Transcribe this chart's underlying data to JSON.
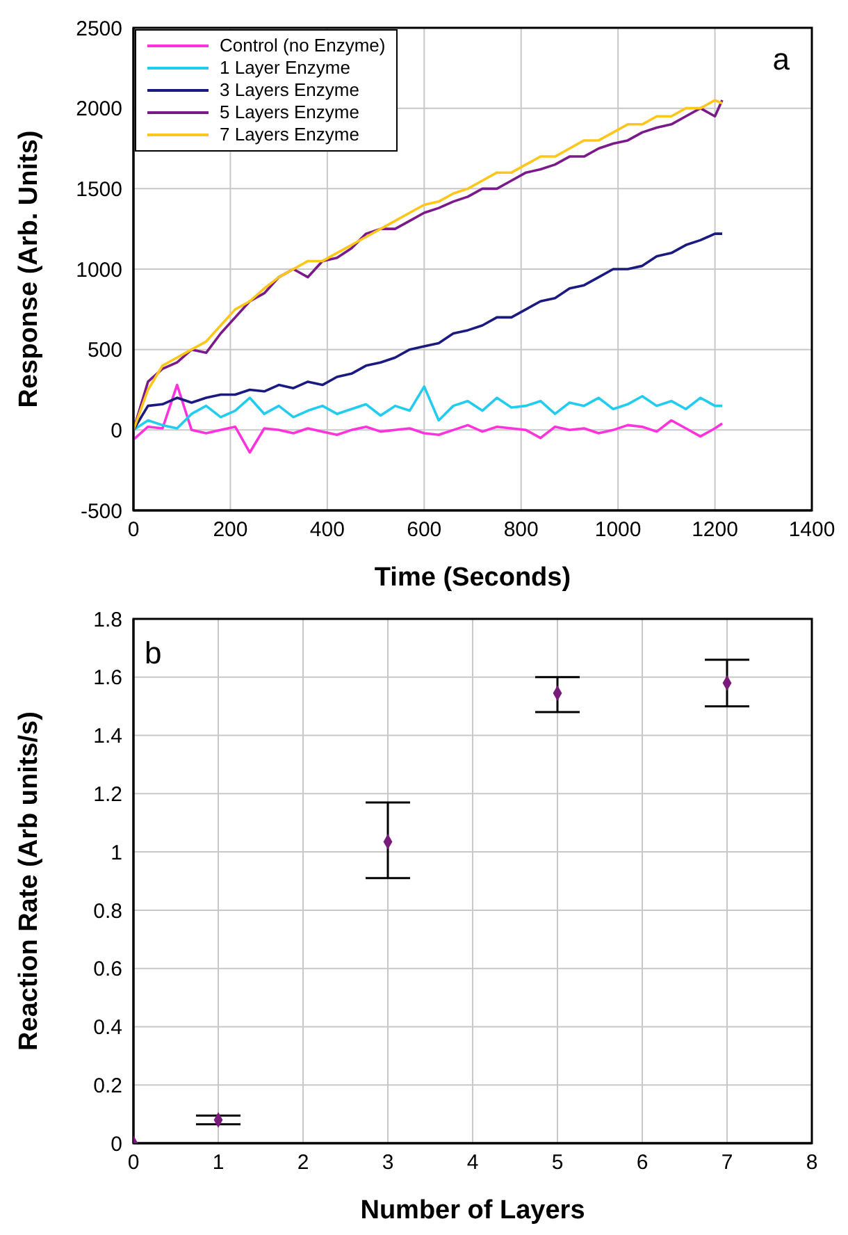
{
  "chart_data": [
    {
      "type": "line",
      "xlabel": "Time (Seconds)",
      "ylabel": "Response (Arb. Units)",
      "annotations": [
        "a"
      ],
      "x": [
        0,
        30,
        60,
        90,
        120,
        150,
        180,
        210,
        240,
        270,
        300,
        330,
        360,
        390,
        420,
        450,
        480,
        510,
        540,
        570,
        600,
        630,
        660,
        690,
        720,
        750,
        780,
        810,
        840,
        870,
        900,
        930,
        960,
        990,
        1020,
        1050,
        1080,
        1110,
        1140,
        1170,
        1200,
        1215
      ],
      "xlim": [
        0,
        1400
      ],
      "xticks": [
        0,
        200,
        400,
        600,
        800,
        1000,
        1200,
        1400
      ],
      "ylim": [
        -500,
        2500
      ],
      "yticks": [
        -500,
        0,
        500,
        1000,
        1500,
        2000,
        2500
      ],
      "grid": true,
      "legend": "top left",
      "marker": "none",
      "line_style": "solid",
      "series": [
        {
          "name": "Control (no Enzyme)",
          "color": "#ff33dd",
          "values": [
            -60,
            20,
            10,
            280,
            0,
            -20,
            0,
            20,
            -140,
            10,
            0,
            -20,
            10,
            -10,
            -30,
            0,
            20,
            -10,
            0,
            10,
            -20,
            -30,
            0,
            30,
            -10,
            20,
            10,
            0,
            -50,
            20,
            0,
            10,
            -20,
            0,
            30,
            20,
            -10,
            60,
            10,
            -40,
            10,
            40
          ]
        },
        {
          "name": "1 Layer Enzyme",
          "color": "#22ccee",
          "values": [
            0,
            60,
            30,
            10,
            100,
            150,
            80,
            120,
            200,
            100,
            150,
            80,
            120,
            150,
            100,
            130,
            160,
            90,
            150,
            120,
            270,
            60,
            150,
            180,
            120,
            200,
            140,
            150,
            180,
            100,
            170,
            150,
            200,
            130,
            160,
            210,
            150,
            180,
            130,
            200,
            150,
            150
          ]
        },
        {
          "name": "3 Layers Enzyme",
          "color": "#1a1a80",
          "values": [
            0,
            150,
            160,
            200,
            170,
            200,
            220,
            220,
            250,
            240,
            280,
            260,
            300,
            280,
            330,
            350,
            400,
            420,
            450,
            500,
            520,
            540,
            600,
            620,
            650,
            700,
            700,
            750,
            800,
            820,
            880,
            900,
            950,
            1000,
            1000,
            1020,
            1080,
            1100,
            1150,
            1180,
            1220,
            1220
          ]
        },
        {
          "name": "5 Layers Enzyme",
          "color": "#7a1a8a",
          "values": [
            0,
            300,
            380,
            420,
            500,
            480,
            600,
            700,
            800,
            850,
            950,
            1000,
            950,
            1050,
            1070,
            1130,
            1220,
            1250,
            1250,
            1300,
            1350,
            1380,
            1420,
            1450,
            1500,
            1500,
            1550,
            1600,
            1620,
            1650,
            1700,
            1700,
            1750,
            1780,
            1800,
            1850,
            1880,
            1900,
            1950,
            2000,
            1950,
            2050
          ]
        },
        {
          "name": "7 Layers Enzyme",
          "color": "#ffc61a",
          "values": [
            0,
            250,
            400,
            450,
            500,
            550,
            650,
            750,
            800,
            880,
            950,
            1000,
            1050,
            1050,
            1100,
            1150,
            1200,
            1250,
            1300,
            1350,
            1400,
            1420,
            1470,
            1500,
            1550,
            1600,
            1600,
            1650,
            1700,
            1700,
            1750,
            1800,
            1800,
            1850,
            1900,
            1900,
            1950,
            1950,
            2000,
            2000,
            2050,
            2030
          ]
        }
      ]
    },
    {
      "type": "scatter",
      "xlabel": "Number of Layers",
      "ylabel": "Reaction Rate (Arb units/s)",
      "annotations": [
        "b"
      ],
      "x": [
        0,
        1,
        3,
        5,
        7
      ],
      "xlim": [
        0,
        8
      ],
      "xticks": [
        0,
        1,
        2,
        3,
        4,
        5,
        6,
        7,
        8
      ],
      "ylim": [
        0,
        1.8
      ],
      "yticks": [
        0,
        0.2,
        0.4,
        0.6,
        0.8,
        1,
        1.2,
        1.4,
        1.6,
        1.8
      ],
      "grid": true,
      "marker": "diamond",
      "series": [
        {
          "color": "#7a1a7a",
          "values": [
            0,
            0.08,
            1.035,
            1.545,
            1.58
          ],
          "errors": [
            null,
            [
              0.065,
              0.095
            ],
            [
              0.91,
              1.17
            ],
            [
              1.48,
              1.6
            ],
            [
              1.5,
              1.66
            ]
          ]
        }
      ]
    }
  ]
}
